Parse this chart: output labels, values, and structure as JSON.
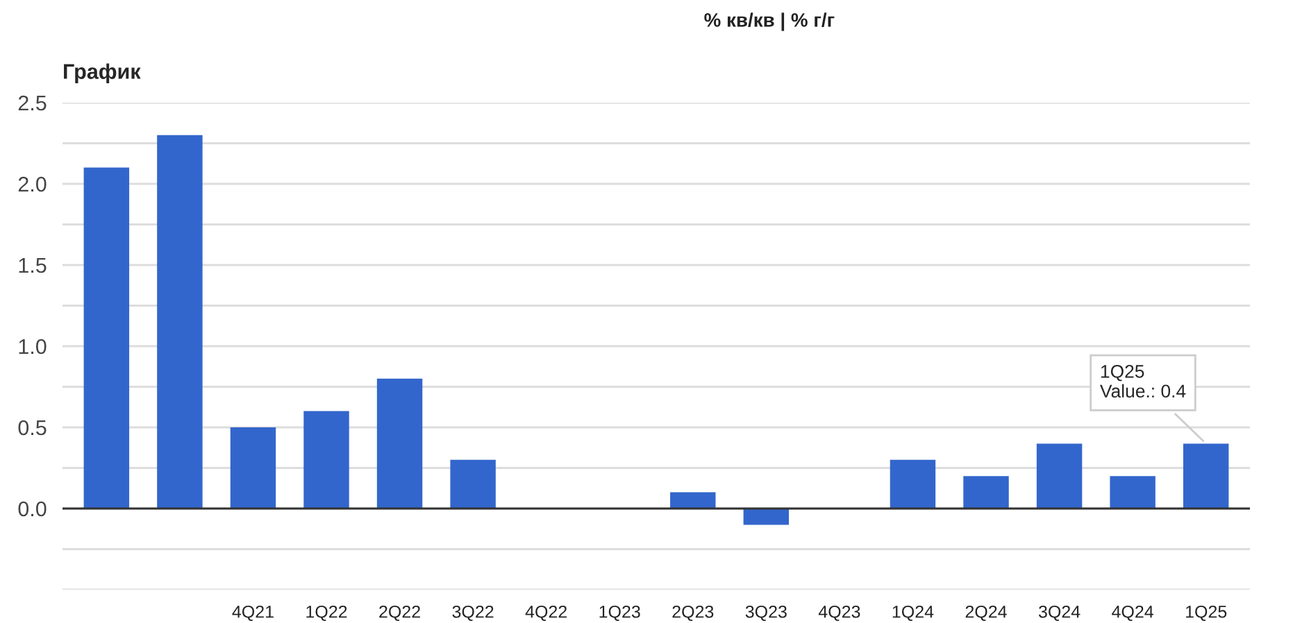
{
  "chart_data": {
    "type": "bar",
    "title": "График",
    "subtitle": "% кв/кв | % г/г",
    "categories": [
      null,
      null,
      "4Q21",
      "1Q22",
      "2Q22",
      "3Q22",
      "4Q22",
      "1Q23",
      "2Q23",
      "3Q23",
      "4Q23",
      "1Q24",
      "2Q24",
      "3Q24",
      "4Q24",
      "1Q25"
    ],
    "values": [
      2.1,
      2.3,
      0.5,
      0.6,
      0.8,
      0.3,
      0,
      0,
      0.1,
      -0.1,
      0,
      0.3,
      0.2,
      0.4,
      0.2,
      0.4
    ],
    "color": "#3366cc",
    "ylim": [
      -0.5,
      2.5
    ],
    "yticks": [
      {
        "value": -0.5,
        "label": null
      },
      {
        "value": -0.25,
        "label": null
      },
      {
        "value": 0,
        "label": "0.0"
      },
      {
        "value": 0.25,
        "label": null
      },
      0.5,
      {
        "value": 0.75,
        "label": null
      },
      {
        "value": 1,
        "label": "1.0"
      },
      {
        "value": 1.25,
        "label": null
      },
      1.5,
      {
        "value": 1.75,
        "label": null
      },
      {
        "value": 2,
        "label": "2.0"
      },
      {
        "value": 2.25,
        "label": null
      },
      2.5
    ],
    "grid": "y",
    "ref_lines": [
      {
        "axis": "y",
        "value": 0,
        "color": "#333333"
      }
    ],
    "annotations": [
      {
        "text": "1Q25\nValue.: 0.4",
        "x": "1Q25",
        "y": 0.4
      }
    ]
  }
}
